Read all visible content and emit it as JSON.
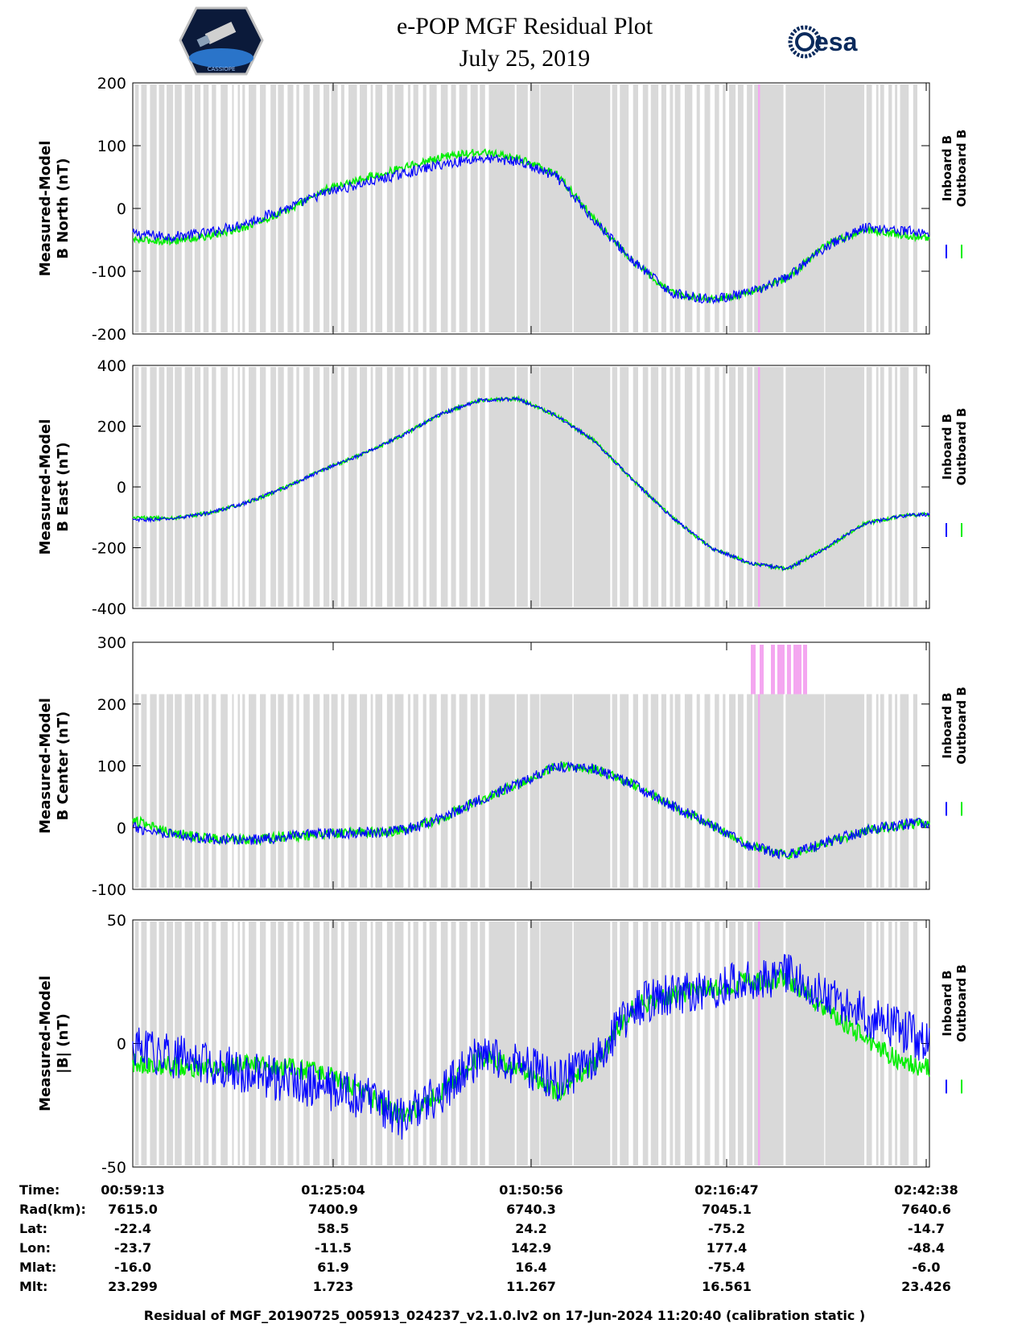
{
  "header": {
    "title_line1": "e-POP MGF Residual Plot",
    "title_line2": "July 25, 2019",
    "left_logo_text": "CASSIOPE",
    "right_logo_text": "esa"
  },
  "colors": {
    "inboard": "#0000ff",
    "outboard": "#00ee00",
    "gray_band": "#d9d9d9",
    "pink_marker": "#f4a6f0"
  },
  "chart_data": [
    {
      "type": "line",
      "panel": "north",
      "ylabel_line1": "Measured-Model",
      "ylabel_line2": "B North (nT)",
      "ylim": [
        -200,
        200
      ],
      "yticks": [
        200,
        100,
        0,
        -100,
        -200
      ],
      "x_minutes": [
        0,
        5,
        10,
        15,
        20,
        25,
        30,
        35,
        40,
        45,
        50,
        55,
        60,
        65,
        70,
        75,
        80,
        85,
        90,
        95,
        100,
        103.4
      ],
      "series": [
        {
          "name": "Inboard B",
          "noise": 8,
          "values": [
            -40,
            -45,
            -38,
            -22,
            0,
            25,
            40,
            55,
            70,
            80,
            75,
            50,
            -20,
            -85,
            -135,
            -145,
            -135,
            -110,
            -60,
            -30,
            -35,
            -40
          ]
        },
        {
          "name": "Outboard B",
          "noise": 6,
          "values": [
            -50,
            -52,
            -44,
            -28,
            -4,
            30,
            48,
            65,
            82,
            90,
            80,
            55,
            -18,
            -85,
            -135,
            -145,
            -135,
            -110,
            -58,
            -34,
            -42,
            -48
          ]
        }
      ]
    },
    {
      "type": "line",
      "panel": "east",
      "ylabel_line1": "Measured-Model",
      "ylabel_line2": "B East (nT)",
      "ylim": [
        -400,
        400
      ],
      "yticks": [
        400,
        200,
        0,
        -200,
        -400
      ],
      "x_minutes": [
        0,
        5,
        10,
        15,
        20,
        25,
        30,
        35,
        40,
        45,
        50,
        55,
        60,
        65,
        70,
        75,
        80,
        85,
        90,
        95,
        100,
        103.4
      ],
      "series": [
        {
          "name": "Inboard B",
          "noise": 6,
          "values": [
            -110,
            -105,
            -85,
            -50,
            0,
            60,
            110,
            170,
            240,
            285,
            290,
            235,
            150,
            20,
            -100,
            -200,
            -250,
            -270,
            -200,
            -120,
            -95,
            -90
          ]
        },
        {
          "name": "Outboard B",
          "noise": 6,
          "values": [
            -100,
            -104,
            -85,
            -50,
            0,
            60,
            110,
            170,
            240,
            285,
            290,
            235,
            150,
            20,
            -100,
            -200,
            -250,
            -270,
            -200,
            -120,
            -95,
            -90
          ]
        }
      ]
    },
    {
      "type": "line",
      "panel": "center",
      "ylabel_line1": "Measured-Model",
      "ylabel_line2": "B Center (nT)",
      "ylim": [
        -100,
        300
      ],
      "yticks": [
        300,
        200,
        100,
        0,
        -100
      ],
      "x_minutes": [
        0,
        5,
        10,
        15,
        20,
        25,
        30,
        35,
        40,
        45,
        50,
        55,
        60,
        65,
        70,
        75,
        80,
        85,
        90,
        95,
        100,
        103.4
      ],
      "series": [
        {
          "name": "Inboard B",
          "noise": 9,
          "values": [
            0,
            -10,
            -18,
            -20,
            -15,
            -10,
            -8,
            -5,
            15,
            45,
            70,
            100,
            95,
            70,
            35,
            5,
            -30,
            -45,
            -25,
            -5,
            5,
            8
          ]
        },
        {
          "name": "Outboard B",
          "noise": 8,
          "values": [
            12,
            -8,
            -18,
            -20,
            -15,
            -10,
            -8,
            -5,
            15,
            45,
            70,
            100,
            95,
            70,
            35,
            5,
            -30,
            -45,
            -25,
            -5,
            5,
            8
          ]
        }
      ]
    },
    {
      "type": "line",
      "panel": "magnitude",
      "ylabel_line1": "Measured-Model",
      "ylabel_line2": "|B| (nT)",
      "ylim": [
        -50,
        50
      ],
      "yticks": [
        50,
        0,
        -50
      ],
      "x_minutes": [
        0,
        5,
        10,
        15,
        20,
        25,
        30,
        35,
        40,
        45,
        50,
        55,
        60,
        65,
        70,
        75,
        80,
        85,
        90,
        95,
        100,
        103.4
      ],
      "series": [
        {
          "name": "Inboard B",
          "noise": 9,
          "values": [
            -2,
            -5,
            -8,
            -12,
            -15,
            -18,
            -22,
            -30,
            -20,
            -5,
            -8,
            -15,
            -8,
            15,
            20,
            22,
            25,
            28,
            20,
            12,
            5,
            0
          ]
        },
        {
          "name": "Outboard B",
          "noise": 4,
          "values": [
            -8,
            -9,
            -10,
            -8,
            -10,
            -12,
            -20,
            -30,
            -20,
            -5,
            -10,
            -20,
            -8,
            15,
            20,
            22,
            25,
            26,
            14,
            2,
            -8,
            -10
          ]
        }
      ]
    }
  ],
  "legend": {
    "inboard_label": "Inboard B",
    "outboard_label": "Outboard B"
  },
  "axis_info": {
    "rows": [
      {
        "label": "Time:",
        "values": [
          "00:59:13",
          "01:25:04",
          "01:50:56",
          "02:16:47",
          "02:42:38"
        ]
      },
      {
        "label": "Rad(km):",
        "values": [
          "7615.0",
          "7400.9",
          "6740.3",
          "7045.1",
          "7640.6"
        ]
      },
      {
        "label": "Lat:",
        "values": [
          "-22.4",
          "58.5",
          "24.2",
          "-75.2",
          "-14.7"
        ]
      },
      {
        "label": "Lon:",
        "values": [
          "-23.7",
          "-11.5",
          "142.9",
          "177.4",
          "-48.4"
        ]
      },
      {
        "label": "Mlat:",
        "values": [
          "-16.0",
          "61.9",
          "16.4",
          "-75.4",
          "-6.0"
        ]
      },
      {
        "label": "Mlt:",
        "values": [
          "23.299",
          "1.723",
          "11.267",
          "16.561",
          "23.426"
        ]
      }
    ]
  },
  "footer": {
    "caption": "Residual of MGF_20190725_005913_024237_v2.1.0.lv2 on 17-Jun-2024 11:20:40 (calibration static )"
  }
}
